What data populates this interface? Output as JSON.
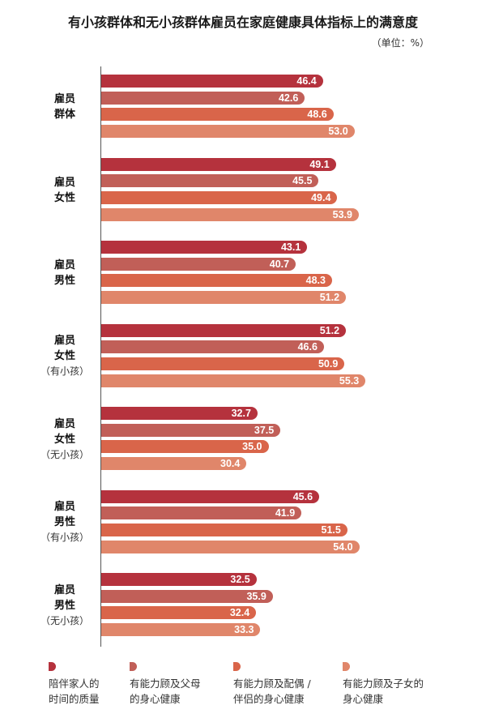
{
  "title": "有小孩群体和无小孩群体雇员在家庭健康具体指标上的满意度",
  "unit": "（单位：%）",
  "chart_data": {
    "type": "bar",
    "orientation": "horizontal",
    "title": "有小孩群体和无小孩群体雇员在家庭健康具体指标上的满意度",
    "unit": "（单位：%）",
    "categories": [
      {
        "lines": [
          "雇员",
          "群体"
        ],
        "note": ""
      },
      {
        "lines": [
          "雇员",
          "女性"
        ],
        "note": ""
      },
      {
        "lines": [
          "雇员",
          "男性"
        ],
        "note": ""
      },
      {
        "lines": [
          "雇员",
          "女性"
        ],
        "note": "（有小孩）"
      },
      {
        "lines": [
          "雇员",
          "女性"
        ],
        "note": "（无小孩）"
      },
      {
        "lines": [
          "雇员",
          "男性"
        ],
        "note": "（有小孩）"
      },
      {
        "lines": [
          "雇员",
          "男性"
        ],
        "note": "（无小孩）"
      }
    ],
    "series": [
      {
        "name": "陪伴家人的时间的质量",
        "legend": [
          "陪伴家人的",
          "时间的质量"
        ],
        "color": "#b5323d",
        "values": [
          46.4,
          49.1,
          43.1,
          51.2,
          32.7,
          45.6,
          32.5
        ]
      },
      {
        "name": "有能力顾及父母的身心健康",
        "legend": [
          "有能力顾及父母",
          "的身心健康"
        ],
        "color": "#c15f58",
        "values": [
          42.6,
          45.5,
          40.7,
          46.6,
          37.5,
          41.9,
          35.9
        ]
      },
      {
        "name": "有能力顾及配偶/伴侣的身心健康",
        "legend": [
          "有能力顾及配偶 /",
          "伴侣的身心健康"
        ],
        "color": "#d9654a",
        "values": [
          48.6,
          49.4,
          48.3,
          50.9,
          35.0,
          51.5,
          32.4
        ]
      },
      {
        "name": "有能力顾及子女的身心健康",
        "legend": [
          "有能力顾及子女的",
          "身心健康"
        ],
        "color": "#e0866a",
        "values": [
          53.0,
          53.9,
          51.2,
          55.3,
          30.4,
          54.0,
          33.3
        ]
      }
    ],
    "xlim": [
      0,
      80
    ],
    "grid": false,
    "legend": "bottom"
  }
}
